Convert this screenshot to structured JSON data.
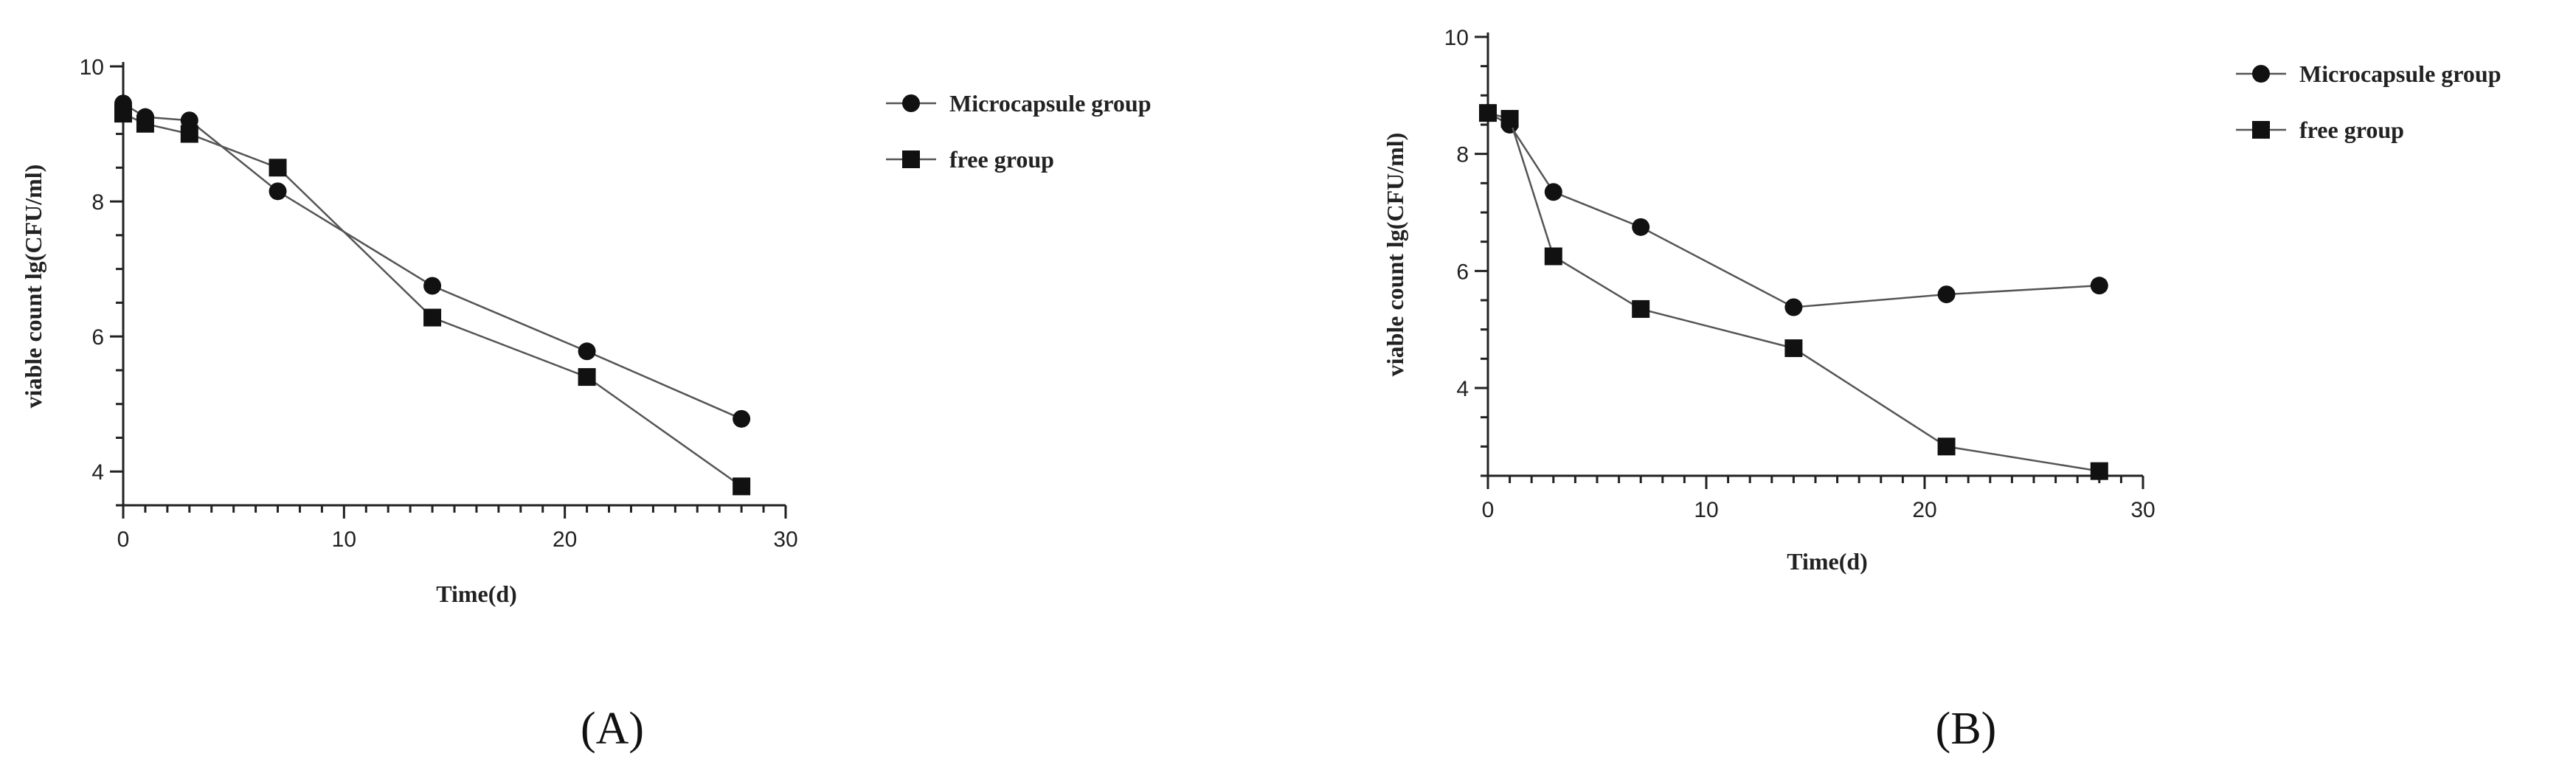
{
  "chart_data": [
    {
      "type": "line",
      "panel_label": "(A)",
      "xlabel": "Time(d)",
      "ylabel": "viable count lg(CFU/ml)",
      "xlim": [
        0,
        30
      ],
      "ylim": [
        3.5,
        10
      ],
      "xticks": [
        0,
        10,
        20,
        30
      ],
      "yticks": [
        4,
        6,
        8,
        10
      ],
      "legend_position": "right",
      "series": [
        {
          "name": "Microcapsule group",
          "marker": "circle",
          "x": [
            0,
            1,
            3,
            7,
            14,
            21,
            28
          ],
          "values": [
            9.45,
            9.25,
            9.2,
            8.15,
            6.75,
            5.78,
            4.78
          ]
        },
        {
          "name": "free group",
          "marker": "square",
          "x": [
            0,
            1,
            3,
            7,
            14,
            21,
            28
          ],
          "values": [
            9.3,
            9.15,
            9.0,
            8.5,
            6.28,
            5.4,
            3.78
          ]
        }
      ]
    },
    {
      "type": "line",
      "panel_label": "(B)",
      "xlabel": "Time(d)",
      "ylabel": "viable count lg(CFU/ml)",
      "xlim": [
        0,
        30
      ],
      "ylim": [
        2.5,
        10
      ],
      "xticks": [
        0,
        10,
        20,
        30
      ],
      "yticks": [
        4,
        6,
        8,
        10
      ],
      "legend_position": "right",
      "series": [
        {
          "name": "Microcapsule group",
          "marker": "circle",
          "x": [
            0,
            1,
            3,
            7,
            14,
            21,
            28
          ],
          "values": [
            8.7,
            8.5,
            7.35,
            6.75,
            5.38,
            5.6,
            5.75
          ]
        },
        {
          "name": "free group",
          "marker": "square",
          "x": [
            0,
            1,
            3,
            7,
            14,
            21,
            28
          ],
          "values": [
            8.7,
            8.6,
            6.25,
            5.35,
            4.68,
            3.0,
            2.58
          ]
        }
      ]
    }
  ]
}
